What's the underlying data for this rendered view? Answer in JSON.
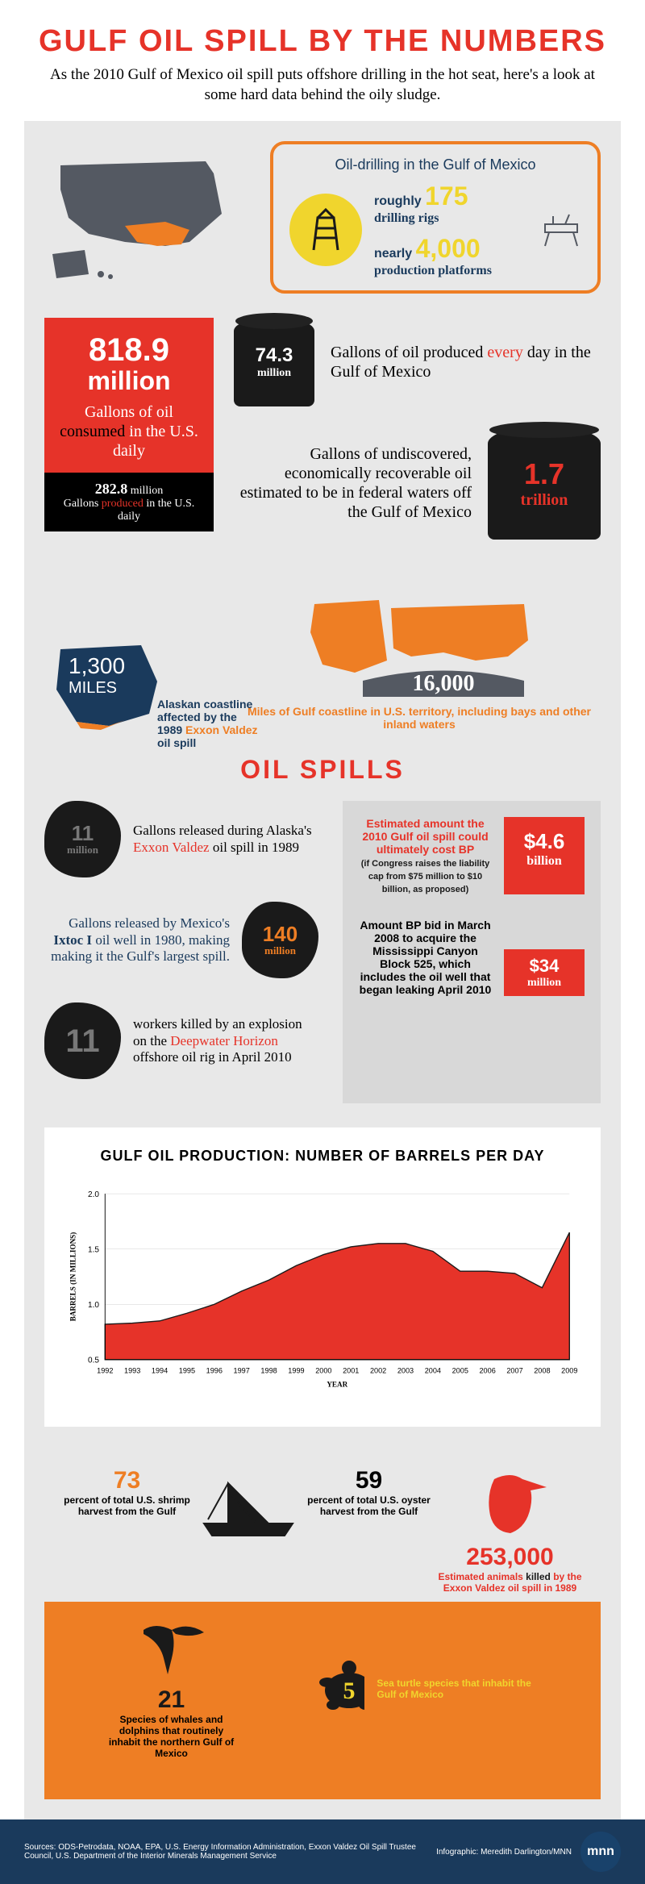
{
  "colors": {
    "red": "#e63329",
    "orange": "#ee7e24",
    "yellow": "#f0d52d",
    "navy": "#1a3a5c",
    "dark_gray": "#545962",
    "black": "#1a1a1a",
    "light_bg": "#e8e8e8"
  },
  "header": {
    "title": "GULF OIL SPILL BY THE NUMBERS",
    "subtitle": "As the 2010 Gulf of Mexico oil spill puts offshore drilling in the hot seat, here's a look at some hard data behind the oily sludge."
  },
  "callout": {
    "title": "Oil-drilling in the Gulf of Mexico",
    "rigs_label": "roughly",
    "rigs_num": "175",
    "rigs_text": "drilling rigs",
    "platforms_label": "nearly",
    "platforms_num": "4,000",
    "platforms_text": "production platforms"
  },
  "consumption": {
    "big_num": "818.9",
    "unit": "million",
    "text_pre": "Gallons of oil ",
    "text_accent": "consumed",
    "text_post": " in the U.S. daily",
    "bottom_num": "282.8",
    "bottom_unit": "million",
    "bottom_pre": "Gallons ",
    "bottom_accent": "produced",
    "bottom_post": " in the U.S. daily"
  },
  "barrels": {
    "daily_num": "74.3",
    "daily_unit": "million",
    "daily_pre": "Gallons of oil produced ",
    "daily_accent": "every",
    "daily_post": " day in the Gulf of Mexico",
    "recoverable_num": "1.7",
    "recoverable_unit": "trillion",
    "recoverable_text": "Gallons of undiscovered, economically recoverable oil estimated to be in federal waters off the Gulf of Mexico"
  },
  "coastline": {
    "alaska_num": "1,300",
    "alaska_unit": "MILES",
    "alaska_pre": "Alaskan coastline affected by the 1989 ",
    "alaska_accent": "Exxon Valdez",
    "alaska_post": " oil spill",
    "gulf_num": "16,000",
    "gulf_text": "Miles of Gulf coastline in U.S. territory, including bays and other inland waters"
  },
  "spills_title": "OIL SPILLS",
  "spills": {
    "valdez_num": "11",
    "valdez_unit": "million",
    "valdez_pre": "Gallons released during Alaska's ",
    "valdez_accent": "Exxon Valdez",
    "valdez_post": " oil spill in 1989",
    "ixtoc_num": "140",
    "ixtoc_unit": "million",
    "ixtoc_pre": "Gallons released by Mexico's ",
    "ixtoc_accent": "Ixtoc I",
    "ixtoc_post": " oil well in 1980, making making it the Gulf's largest spill.",
    "workers_num": "11",
    "workers_pre": "workers killed by an explosion on the ",
    "workers_accent": "Deepwater Horizon",
    "workers_post": " offshore oil rig in April 2010"
  },
  "costs": {
    "bp_cost_text": "Estimated amount the 2010 Gulf oil spill could ultimately cost BP",
    "bp_cost_note": "(if Congress raises the liability cap from $75 million to $10 billion, as proposed)",
    "bp_cost_num": "$4.6",
    "bp_cost_unit": "billion",
    "bid_text": "Amount BP bid in March 2008 to acquire the Mississippi Canyon Block 525, which includes the oil well that began leaking April 2010",
    "bid_num": "$34",
    "bid_unit": "million"
  },
  "chart": {
    "title": "GULF OIL PRODUCTION: NUMBER OF BARRELS PER DAY",
    "ylabel": "BARRELS (IN MILLIONS)",
    "xlabel": "YEAR",
    "years": [
      "1992",
      "1993",
      "1994",
      "1995",
      "1996",
      "1997",
      "1998",
      "1999",
      "2000",
      "2001",
      "2002",
      "2003",
      "2004",
      "2005",
      "2006",
      "2007",
      "2008",
      "2009"
    ],
    "values": [
      0.82,
      0.83,
      0.85,
      0.92,
      1.0,
      1.12,
      1.22,
      1.35,
      1.45,
      1.52,
      1.55,
      1.55,
      1.48,
      1.3,
      1.3,
      1.28,
      1.15,
      1.65
    ],
    "ylim": [
      0.5,
      2.0
    ],
    "yticks": [
      0.5,
      1.0,
      1.5,
      2.0
    ],
    "fill": "#e63329",
    "bg": "#ffffff"
  },
  "wildlife": {
    "shrimp_num": "73",
    "shrimp_text": "percent of total U.S. shrimp harvest from the Gulf",
    "oyster_num": "59",
    "oyster_text": "percent of total U.S. oyster harvest from the Gulf",
    "animals_num": "253,000",
    "animals_pre": "Estimated animals ",
    "animals_accent": "killed",
    "animals_post": " by the Exxon Valdez oil spill in 1989",
    "whales_num": "21",
    "whales_text": "Species of whales and dolphins that routinely inhabit the northern Gulf of Mexico",
    "turtles_num": "5",
    "turtles_text": "Sea turtle species that inhabit the Gulf of Mexico"
  },
  "footer": {
    "sources": "Sources: ODS-Petrodata, NOAA, EPA, U.S. Energy Information Administration, Exxon Valdez Oil Spill Trustee Council, U.S. Department of the Interior Minerals Management Service",
    "credit": "Infographic: Meredith Darlington/MNN",
    "logo": "mnn"
  }
}
